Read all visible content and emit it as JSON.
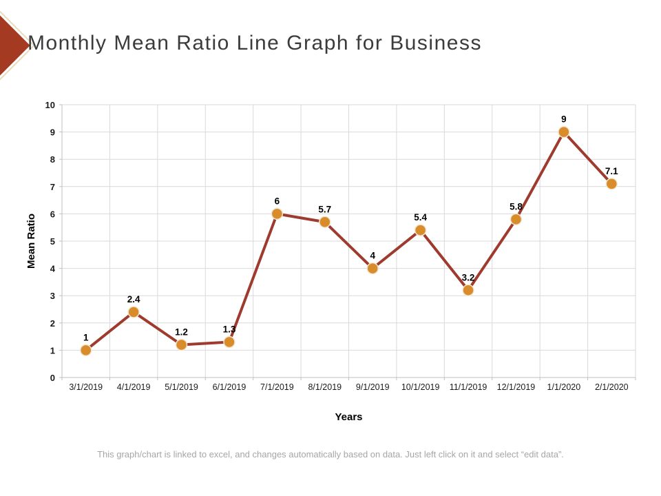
{
  "header": {
    "title": "Monthly Mean Ratio Line Graph for Business",
    "icon": "diamond-bullet-icon",
    "icon_fill": "#a43a22",
    "icon_border": "#e8dcc0"
  },
  "chart_data": {
    "type": "line",
    "categories": [
      "3/1/2019",
      "4/1/2019",
      "5/1/2019",
      "6/1/2019",
      "7/1/2019",
      "8/1/2019",
      "9/1/2019",
      "10/1/2019",
      "11/1/2019",
      "12/1/2019",
      "1/1/2020",
      "2/1/2020"
    ],
    "values": [
      1,
      2.4,
      1.2,
      1.3,
      6,
      5.7,
      4,
      5.4,
      3.2,
      5.8,
      9,
      7.1
    ],
    "data_labels": [
      "1",
      "2.4",
      "1.2",
      "1.3",
      "6",
      "5.7",
      "4",
      "5.4",
      "3.2",
      "5.8",
      "9",
      "7.1"
    ],
    "xlabel": "Years",
    "ylabel": "Mean Ratio",
    "ylim": [
      0,
      10
    ],
    "ytick_step": 1,
    "grid": true,
    "legend": "none",
    "line_color": "#9e3b2e",
    "marker_color": "#d98c2b",
    "marker_outline": "#f2e7d0",
    "gridline_color": "#d9d9d9",
    "axis_color": "#bfbfbf",
    "tick_label_color": "#1a1a1a",
    "data_label_color": "#000000"
  },
  "footer": {
    "note": "This graph/chart is linked to excel,  and changes automatically based on data. Just left click on it and select “edit data”."
  }
}
